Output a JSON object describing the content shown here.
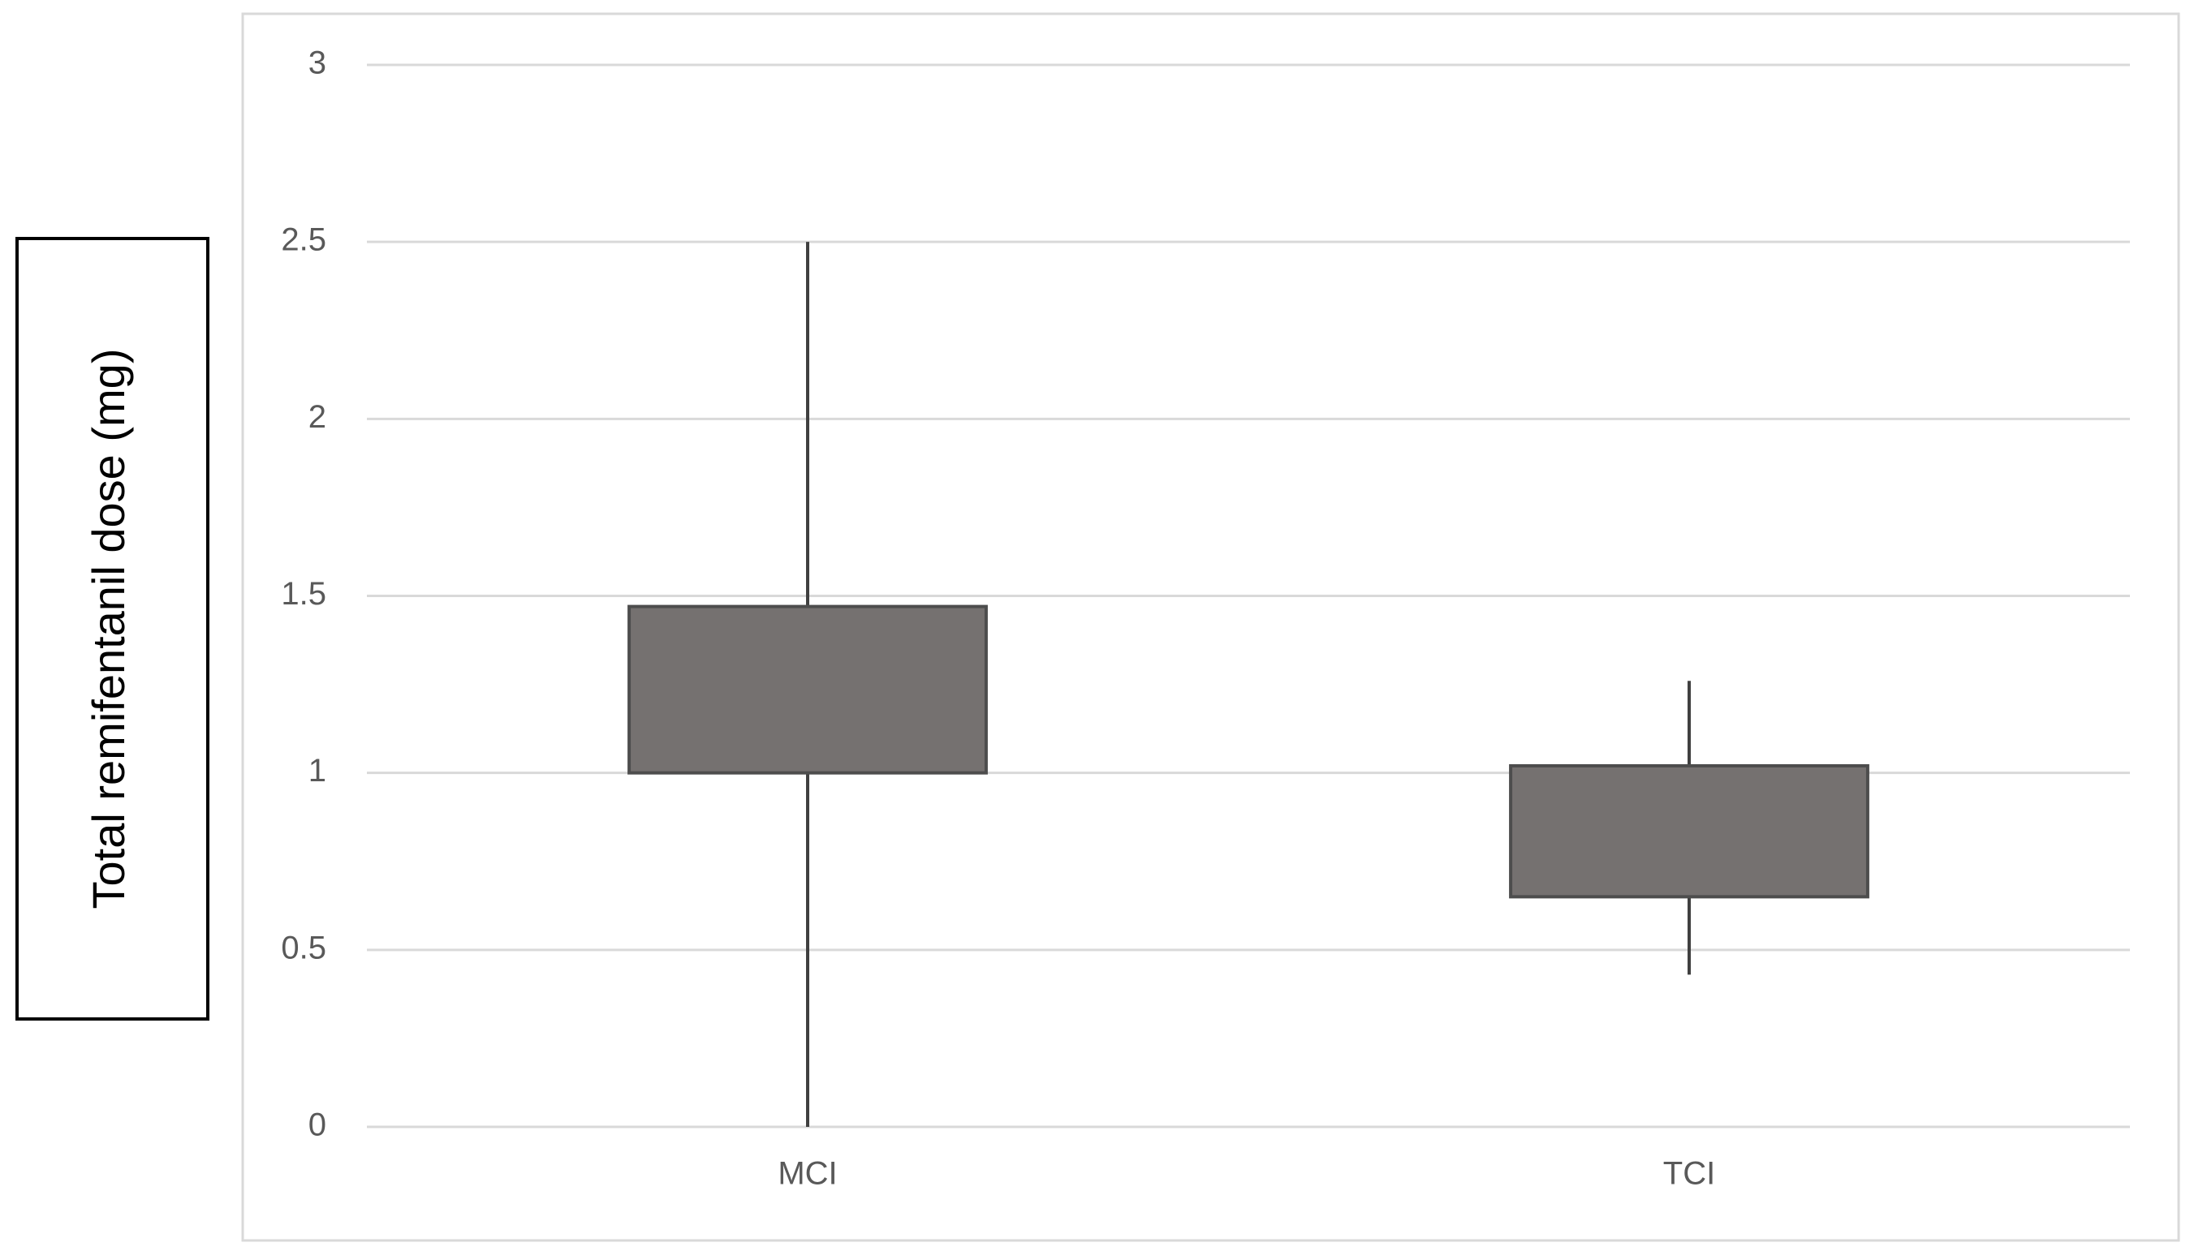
{
  "chart_data": {
    "type": "box",
    "y_label": "Total remifentanil dose (mg)",
    "categories": [
      "MCI",
      "TCI"
    ],
    "min": [
      0,
      0.43
    ],
    "q1": [
      1.0,
      0.65
    ],
    "q3": [
      1.47,
      1.02
    ],
    "max": [
      2.5,
      1.26
    ],
    "color": "#757170",
    "ylim": [
      0,
      3
    ],
    "yticks": [
      0,
      0.5,
      1,
      1.5,
      2,
      2.5,
      3
    ],
    "grid": true
  }
}
